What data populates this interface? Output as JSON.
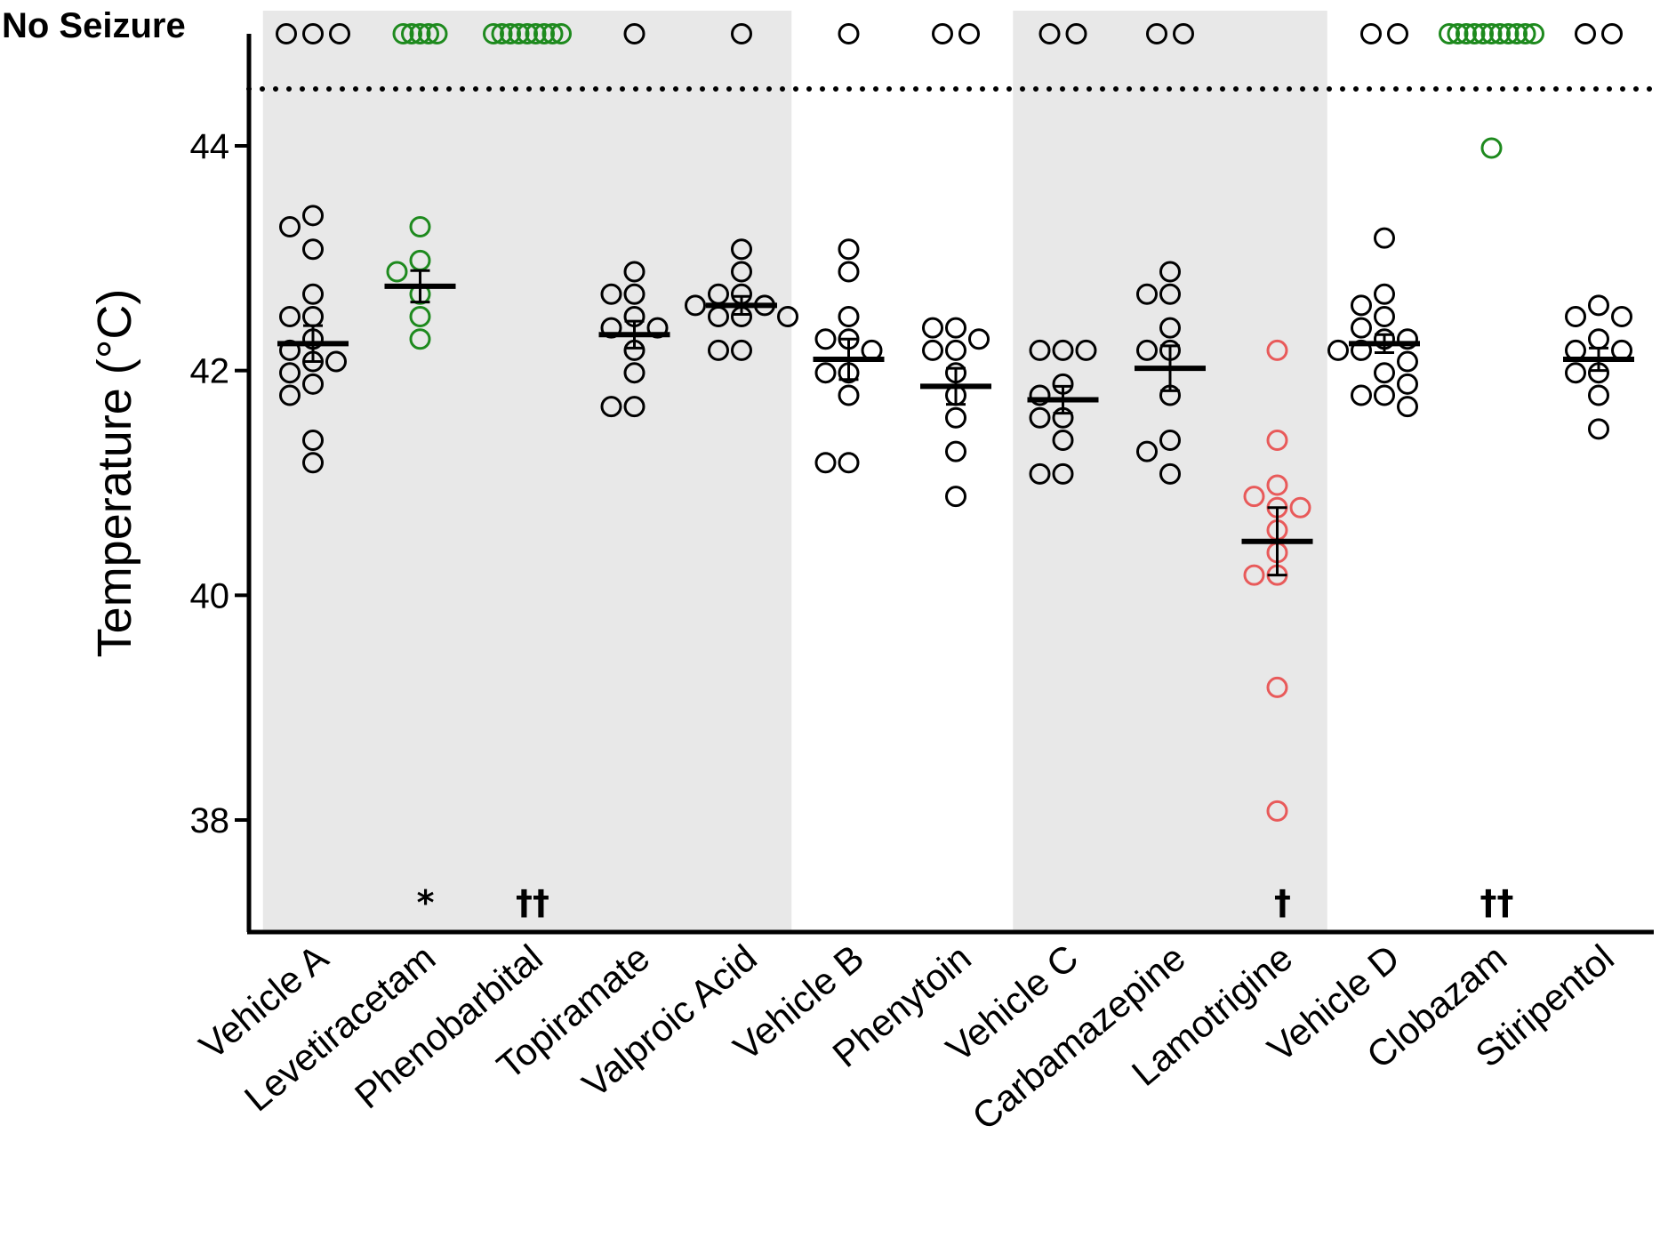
{
  "chart_data": {
    "type": "scatter",
    "ylabel": "Temperature  (°C)",
    "no_seizure_label": "No Seizure",
    "ylim": [
      37.0,
      45.0
    ],
    "yticks": [
      38,
      40,
      42,
      44
    ],
    "colors": {
      "normal": "#000000",
      "green": "#1e8a1e",
      "red": "#e85a5a",
      "shade": "#e8e8e8"
    },
    "shaded_bands": [
      [
        0,
        4
      ],
      [
        7,
        9
      ]
    ],
    "groups": [
      {
        "name": "Vehicle A",
        "color": "normal",
        "mean": 42.24,
        "sem": 0.16,
        "no_seizure": 3,
        "significance": "",
        "values": [
          43.38,
          43.28,
          43.08,
          42.68,
          42.48,
          42.48,
          42.28,
          42.18,
          42.08,
          42.08,
          41.98,
          41.88,
          41.78,
          41.38,
          41.18
        ]
      },
      {
        "name": "Levetiracetam",
        "color": "green",
        "mean": 42.75,
        "sem": 0.14,
        "no_seizure": 5,
        "significance": "*",
        "values": [
          43.28,
          42.98,
          42.88,
          42.68,
          42.48,
          42.28
        ]
      },
      {
        "name": "Phenobarbital",
        "color": "green",
        "mean": null,
        "sem": null,
        "no_seizure": 9,
        "significance": "††",
        "values": []
      },
      {
        "name": "Topiramate",
        "color": "normal",
        "mean": 42.32,
        "sem": 0.12,
        "no_seizure": 1,
        "significance": "",
        "values": [
          42.88,
          42.68,
          42.68,
          42.48,
          42.38,
          42.38,
          42.18,
          41.98,
          41.68,
          41.68
        ]
      },
      {
        "name": "Valproic Acid",
        "color": "normal",
        "mean": 42.58,
        "sem": 0.08,
        "no_seizure": 1,
        "significance": "",
        "values": [
          43.08,
          42.88,
          42.68,
          42.68,
          42.58,
          42.58,
          42.48,
          42.48,
          42.48,
          42.18,
          42.18
        ]
      },
      {
        "name": "Vehicle B",
        "color": "normal",
        "mean": 42.1,
        "sem": 0.18,
        "no_seizure": 1,
        "significance": "",
        "values": [
          43.08,
          42.88,
          42.48,
          42.28,
          42.28,
          42.18,
          41.98,
          41.98,
          41.78,
          41.18,
          41.18
        ]
      },
      {
        "name": "Phenytoin",
        "color": "normal",
        "mean": 41.86,
        "sem": 0.16,
        "no_seizure": 2,
        "significance": "",
        "values": [
          42.38,
          42.38,
          42.28,
          42.18,
          42.18,
          41.98,
          41.78,
          41.58,
          41.28,
          40.88
        ]
      },
      {
        "name": "Vehicle C",
        "color": "normal",
        "mean": 41.74,
        "sem": 0.12,
        "no_seizure": 2,
        "significance": "",
        "values": [
          42.18,
          42.18,
          42.18,
          41.88,
          41.78,
          41.58,
          41.58,
          41.38,
          41.08,
          41.08
        ]
      },
      {
        "name": "Carbamazepine",
        "color": "normal",
        "mean": 42.02,
        "sem": 0.2,
        "no_seizure": 2,
        "significance": "",
        "values": [
          42.88,
          42.68,
          42.68,
          42.38,
          42.18,
          42.18,
          41.78,
          41.38,
          41.28,
          41.08
        ]
      },
      {
        "name": "Lamotrigine",
        "color": "red",
        "mean": 40.48,
        "sem": 0.3,
        "no_seizure": 0,
        "significance": "†",
        "values": [
          42.18,
          41.38,
          40.98,
          40.88,
          40.78,
          40.78,
          40.58,
          40.38,
          40.18,
          40.18,
          39.18,
          38.08
        ]
      },
      {
        "name": "Vehicle D",
        "color": "normal",
        "mean": 42.24,
        "sem": 0.08,
        "no_seizure": 2,
        "significance": "",
        "values": [
          43.18,
          42.68,
          42.58,
          42.48,
          42.38,
          42.28,
          42.28,
          42.18,
          42.18,
          41.98,
          41.78,
          41.78,
          41.68,
          41.88,
          42.08
        ]
      },
      {
        "name": "Clobazam",
        "color": "green",
        "mean": null,
        "sem": null,
        "no_seizure": 11,
        "significance": "††",
        "values": [
          43.98
        ]
      },
      {
        "name": "Stiripentol",
        "color": "normal",
        "mean": 42.1,
        "sem": 0.1,
        "no_seizure": 2,
        "significance": "",
        "values": [
          42.58,
          42.48,
          42.48,
          42.28,
          42.18,
          42.18,
          41.98,
          41.98,
          41.78,
          41.48
        ]
      }
    ]
  }
}
